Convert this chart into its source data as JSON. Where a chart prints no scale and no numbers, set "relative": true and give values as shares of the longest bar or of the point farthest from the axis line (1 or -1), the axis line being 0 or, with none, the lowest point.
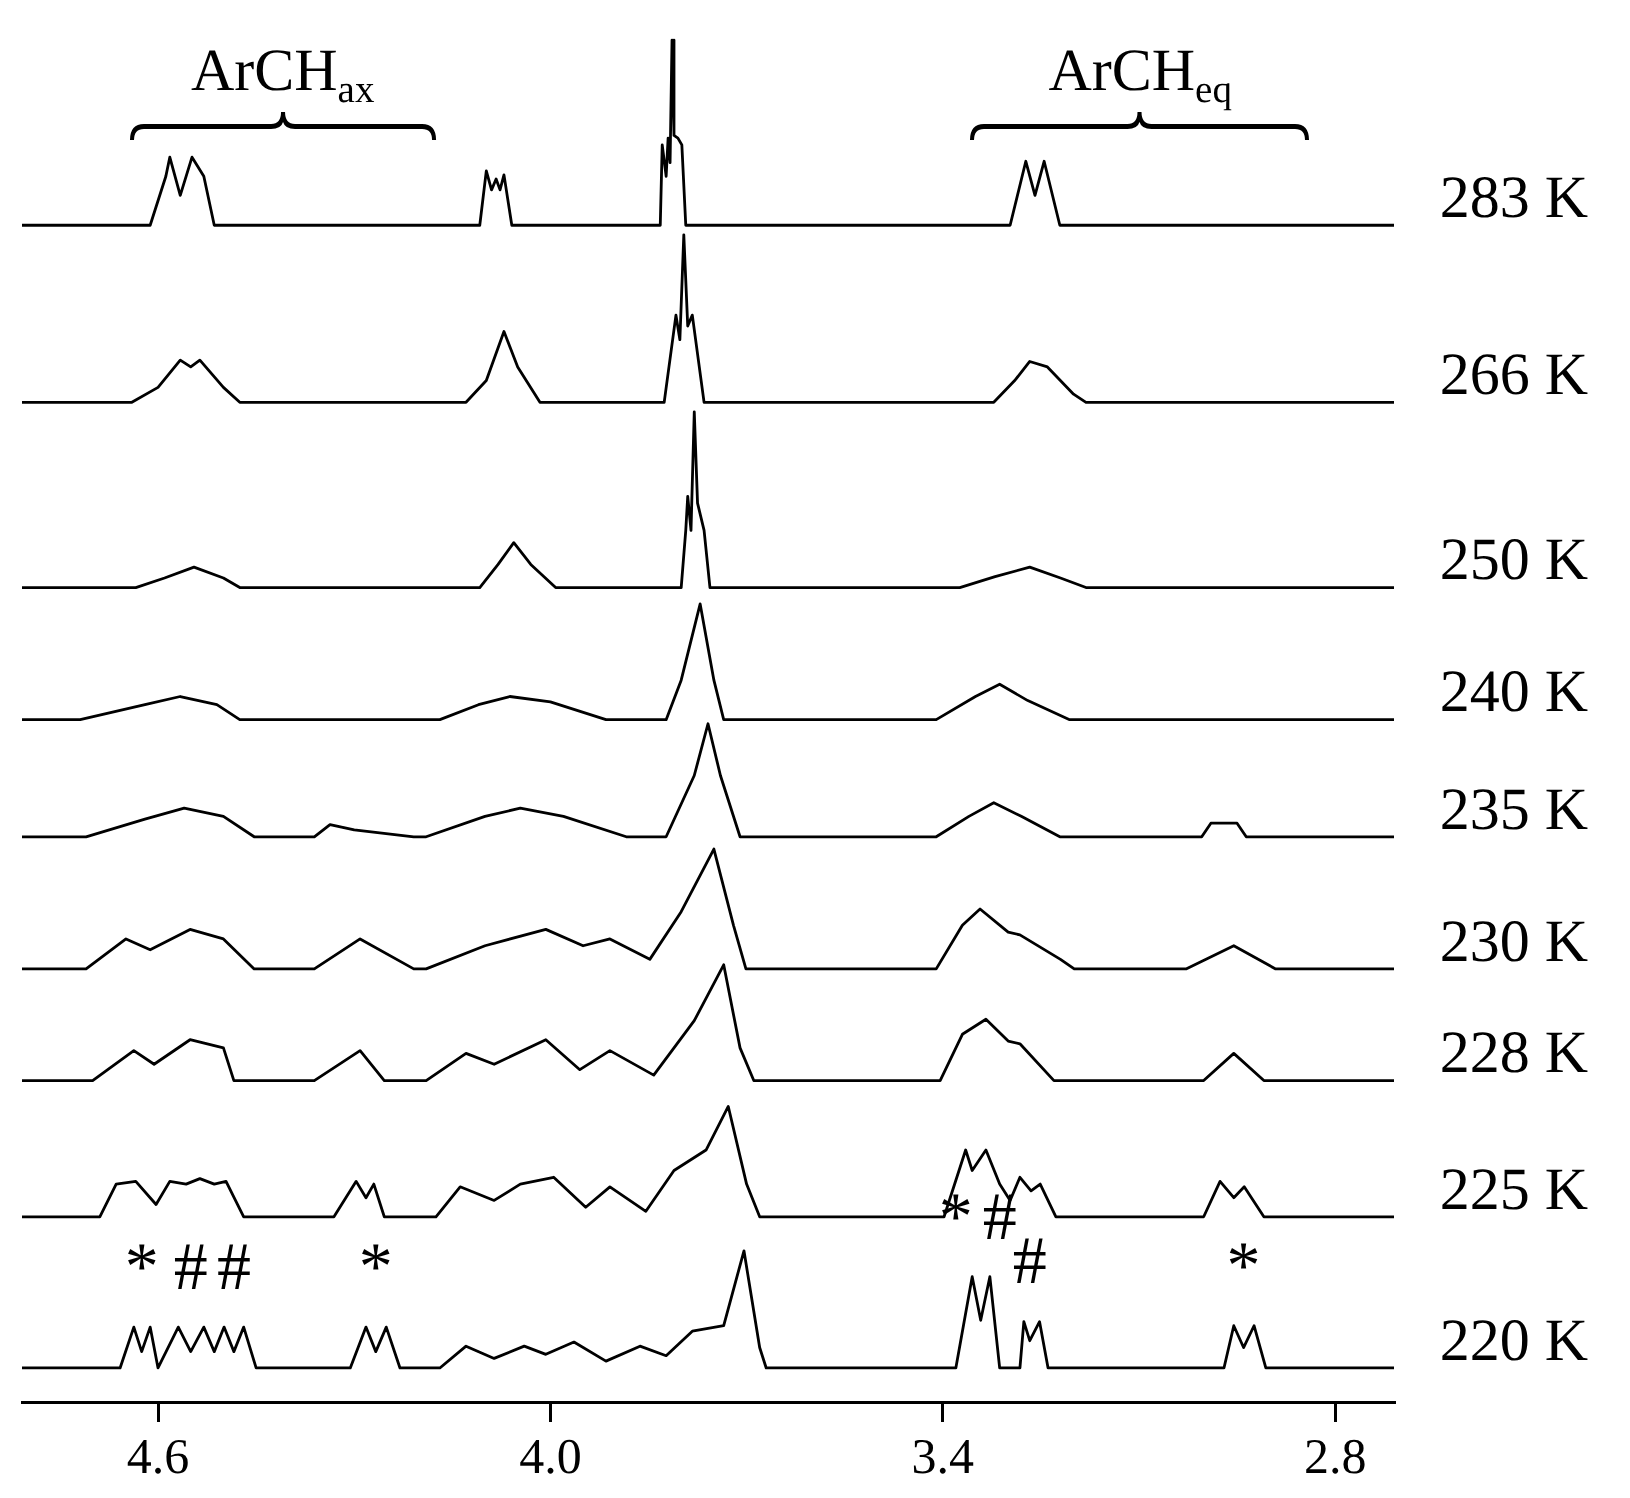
{
  "chart_data": {
    "type": "line",
    "relative": true,
    "legend": false,
    "grid": false,
    "marker": "none",
    "line_style": "solid",
    "xlim": [
      4.808,
      2.71
    ],
    "xticks": [
      {
        "value": 4.6,
        "label": "4.6"
      },
      {
        "value": 4,
        "label": "4.0"
      },
      {
        "value": 3.4,
        "label": "3.4"
      },
      {
        "value": 2.8,
        "label": "2.8"
      }
    ],
    "series": [
      {
        "name": "283 K",
        "color": "#000000",
        "x": [
          4.808,
          4.612,
          4.588,
          4.582,
          4.566,
          4.548,
          4.53,
          4.514,
          4.108,
          4.098,
          4.09,
          4.083,
          4.077,
          4.071,
          4.059,
          3.832,
          3.829,
          3.823,
          3.82,
          3.817,
          3.814,
          3.811,
          3.805,
          3.799,
          3.793,
          3.297,
          3.273,
          3.259,
          3.245,
          3.221,
          2.71
        ],
        "values": [
          0.864,
          0.864,
          0.9,
          0.914,
          0.886,
          0.914,
          0.9,
          0.864,
          0.864,
          0.904,
          0.89,
          0.898,
          0.89,
          0.901,
          0.864,
          0.864,
          0.923,
          0.9,
          0.928,
          0.91,
          1.0,
          0.93,
          0.928,
          0.923,
          0.864,
          0.864,
          0.911,
          0.886,
          0.911,
          0.864,
          0.864
        ]
      },
      {
        "name": "266 K",
        "color": "#000000",
        "x": [
          4.808,
          4.64,
          4.6,
          4.566,
          4.55,
          4.536,
          4.5,
          4.475,
          4.129,
          4.098,
          4.071,
          4.05,
          4.016,
          3.826,
          3.808,
          3.802,
          3.796,
          3.79,
          3.783,
          3.765,
          3.322,
          3.29,
          3.267,
          3.24,
          3.2,
          3.181,
          2.71
        ],
        "values": [
          0.734,
          0.734,
          0.745,
          0.765,
          0.76,
          0.765,
          0.745,
          0.734,
          0.734,
          0.75,
          0.786,
          0.76,
          0.734,
          0.734,
          0.798,
          0.78,
          0.857,
          0.79,
          0.798,
          0.734,
          0.734,
          0.75,
          0.764,
          0.76,
          0.74,
          0.734,
          0.734
        ]
      },
      {
        "name": "250 K",
        "color": "#000000",
        "x": [
          4.808,
          4.634,
          4.59,
          4.545,
          4.5,
          4.475,
          4.108,
          4.08,
          4.056,
          4.03,
          3.992,
          3.8,
          3.793,
          3.79,
          3.785,
          3.78,
          3.775,
          3.765,
          3.756,
          3.374,
          3.32,
          3.267,
          3.22,
          3.181,
          2.71
        ],
        "values": [
          0.598,
          0.598,
          0.605,
          0.613,
          0.605,
          0.598,
          0.598,
          0.615,
          0.631,
          0.615,
          0.598,
          0.598,
          0.64,
          0.665,
          0.64,
          0.727,
          0.66,
          0.64,
          0.598,
          0.598,
          0.606,
          0.613,
          0.605,
          0.598,
          0.598
        ]
      },
      {
        "name": "240 K",
        "color": "#000000",
        "x": [
          4.808,
          4.719,
          4.62,
          4.566,
          4.51,
          4.475,
          4.169,
          4.11,
          4.062,
          4.0,
          3.915,
          3.823,
          3.8,
          3.771,
          3.75,
          3.735,
          3.41,
          3.35,
          3.313,
          3.27,
          3.206,
          2.71
        ],
        "values": [
          0.501,
          0.501,
          0.512,
          0.518,
          0.512,
          0.501,
          0.501,
          0.512,
          0.518,
          0.514,
          0.501,
          0.501,
          0.53,
          0.586,
          0.53,
          0.501,
          0.501,
          0.518,
          0.527,
          0.515,
          0.501,
          0.501
        ]
      },
      {
        "name": "235 K",
        "color": "#000000",
        "x": [
          4.808,
          4.71,
          4.62,
          4.56,
          4.5,
          4.453,
          4.361,
          4.337,
          4.3,
          4.209,
          4.19,
          4.1,
          4.046,
          3.98,
          3.884,
          3.823,
          3.78,
          3.759,
          3.74,
          3.71,
          3.41,
          3.36,
          3.322,
          3.28,
          3.221,
          3.004,
          2.99,
          2.97,
          2.95,
          2.936,
          2.71
        ],
        "values": [
          0.415,
          0.415,
          0.428,
          0.436,
          0.43,
          0.415,
          0.415,
          0.424,
          0.42,
          0.415,
          0.415,
          0.43,
          0.436,
          0.43,
          0.415,
          0.415,
          0.46,
          0.498,
          0.46,
          0.415,
          0.415,
          0.43,
          0.44,
          0.43,
          0.415,
          0.415,
          0.425,
          0.425,
          0.425,
          0.415,
          0.415
        ]
      },
      {
        "name": "230 K",
        "color": "#000000",
        "x": [
          4.808,
          4.71,
          4.649,
          4.612,
          4.551,
          4.5,
          4.453,
          4.361,
          4.291,
          4.209,
          4.19,
          4.1,
          4.007,
          3.95,
          3.909,
          3.848,
          3.8,
          3.75,
          3.72,
          3.701,
          3.41,
          3.37,
          3.343,
          3.3,
          3.282,
          3.22,
          3.199,
          3.028,
          2.955,
          2.891,
          2.71
        ],
        "values": [
          0.318,
          0.318,
          0.34,
          0.332,
          0.347,
          0.34,
          0.318,
          0.318,
          0.34,
          0.318,
          0.318,
          0.335,
          0.347,
          0.335,
          0.34,
          0.325,
          0.36,
          0.406,
          0.35,
          0.318,
          0.318,
          0.35,
          0.362,
          0.345,
          0.343,
          0.325,
          0.318,
          0.318,
          0.335,
          0.318,
          0.318
        ]
      },
      {
        "name": "228 K",
        "color": "#000000",
        "x": [
          4.808,
          4.7,
          4.637,
          4.606,
          4.551,
          4.5,
          4.484,
          4.361,
          4.291,
          4.254,
          4.19,
          4.129,
          4.086,
          4.007,
          3.955,
          3.909,
          3.842,
          3.78,
          3.735,
          3.71,
          3.689,
          3.404,
          3.37,
          3.334,
          3.3,
          3.282,
          3.23,
          3.001,
          2.955,
          2.909,
          2.71
        ],
        "values": [
          0.236,
          0.236,
          0.258,
          0.248,
          0.266,
          0.26,
          0.236,
          0.236,
          0.258,
          0.236,
          0.236,
          0.256,
          0.248,
          0.266,
          0.244,
          0.258,
          0.24,
          0.28,
          0.321,
          0.26,
          0.236,
          0.236,
          0.27,
          0.281,
          0.265,
          0.263,
          0.236,
          0.236,
          0.256,
          0.236,
          0.236
        ]
      },
      {
        "name": "225 K",
        "color": "#000000",
        "x": [
          4.808,
          4.689,
          4.664,
          4.634,
          4.603,
          4.582,
          4.557,
          4.536,
          4.514,
          4.496,
          4.469,
          4.331,
          4.297,
          4.282,
          4.27,
          4.254,
          4.175,
          4.138,
          4.086,
          4.046,
          3.995,
          3.946,
          3.909,
          3.854,
          3.811,
          3.762,
          3.728,
          3.7,
          3.68,
          3.398,
          3.365,
          3.355,
          3.334,
          3.313,
          3.297,
          3.282,
          3.265,
          3.251,
          3.227,
          3.001,
          2.976,
          2.955,
          2.939,
          2.909,
          2.71
        ],
        "values": [
          0.136,
          0.136,
          0.16,
          0.162,
          0.145,
          0.162,
          0.16,
          0.164,
          0.16,
          0.162,
          0.136,
          0.136,
          0.162,
          0.15,
          0.16,
          0.136,
          0.136,
          0.158,
          0.148,
          0.16,
          0.165,
          0.143,
          0.158,
          0.14,
          0.17,
          0.185,
          0.217,
          0.16,
          0.136,
          0.136,
          0.185,
          0.17,
          0.185,
          0.16,
          0.148,
          0.165,
          0.155,
          0.16,
          0.136,
          0.136,
          0.162,
          0.15,
          0.158,
          0.136,
          0.136
        ]
      },
      {
        "name": "220 K",
        "color": "#000000",
        "x": [
          4.808,
          4.658,
          4.637,
          4.625,
          4.612,
          4.6,
          4.569,
          4.55,
          4.53,
          4.514,
          4.499,
          4.484,
          4.469,
          4.45,
          4.306,
          4.282,
          4.267,
          4.251,
          4.23,
          4.169,
          4.129,
          4.086,
          4.04,
          4.007,
          3.964,
          3.915,
          3.863,
          3.823,
          3.783,
          3.735,
          3.704,
          3.68,
          3.67,
          3.38,
          3.355,
          3.342,
          3.328,
          3.313,
          3.282,
          3.276,
          3.267,
          3.252,
          3.239,
          3.212,
          2.97,
          2.955,
          2.94,
          2.924,
          2.906,
          2.71
        ],
        "values": [
          0.025,
          0.025,
          0.055,
          0.037,
          0.055,
          0.025,
          0.055,
          0.037,
          0.055,
          0.037,
          0.055,
          0.037,
          0.055,
          0.025,
          0.025,
          0.055,
          0.037,
          0.055,
          0.025,
          0.025,
          0.041,
          0.032,
          0.041,
          0.035,
          0.044,
          0.03,
          0.041,
          0.034,
          0.052,
          0.056,
          0.111,
          0.04,
          0.025,
          0.025,
          0.092,
          0.06,
          0.092,
          0.025,
          0.025,
          0.059,
          0.045,
          0.059,
          0.025,
          0.025,
          0.025,
          0.056,
          0.04,
          0.056,
          0.025,
          0.025
        ]
      }
    ],
    "annotations": [
      "ArCH$_{ax}$",
      "ArCH$_{eq}$",
      {
        "text": "*",
        "x": 4.625,
        "y": 0.037
      },
      {
        "text": "#",
        "x": 4.55,
        "y": 0.037
      },
      {
        "text": "#",
        "x": 4.484,
        "y": 0.037
      },
      {
        "text": "*",
        "x": 4.267,
        "y": 0.037
      },
      {
        "text": "*",
        "x": 3.38,
        "y": 0.025
      },
      {
        "text": "#",
        "x": 3.313,
        "y": 0.025
      },
      {
        "text": "#",
        "x": 3.267,
        "y": 0.045
      },
      {
        "text": "*",
        "x": 2.94,
        "y": 0.04
      }
    ]
  }
}
